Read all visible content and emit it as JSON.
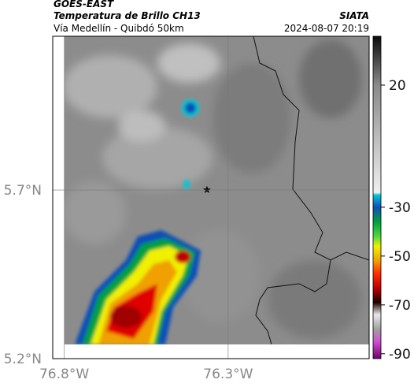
{
  "header": {
    "source": "GOES-EAST",
    "title": "Temperatura de Brillo CH13",
    "agency": "SIATA",
    "route": "Vía Medellín - Quibdó 50km",
    "timestamp": "2024-08-07 20:19"
  },
  "map": {
    "lonlim": [
      -76.835,
      -75.87
    ],
    "latlim": [
      5.2,
      6.156
    ],
    "lonticks": [
      {
        "value": -76.8,
        "label": "76.8°W"
      },
      {
        "value": -76.3,
        "label": "76.3°W"
      }
    ],
    "latticks": [
      {
        "value": 5.2,
        "label": "5.2°N"
      },
      {
        "value": 5.7,
        "label": "5.7°N"
      }
    ]
  },
  "colorbar": {
    "lim": [
      -92,
      40
    ],
    "ticks": [
      20,
      -30,
      -50,
      -70,
      -90
    ],
    "colormap": [
      {
        "value": 40,
        "color": "#0a0a0a"
      },
      {
        "value": 20,
        "color": "#8a8a8a"
      },
      {
        "value": -24,
        "color": "#f0f0f0"
      },
      {
        "value": -25,
        "color": "#00c8d8"
      },
      {
        "value": -30,
        "color": "#1050b8"
      },
      {
        "value": -36,
        "color": "#00a040"
      },
      {
        "value": -42,
        "color": "#50d840"
      },
      {
        "value": -46,
        "color": "#f0f000"
      },
      {
        "value": -52,
        "color": "#f0a000"
      },
      {
        "value": -57,
        "color": "#ff3000"
      },
      {
        "value": -63,
        "color": "#c00000"
      },
      {
        "value": -69,
        "color": "#200000"
      },
      {
        "value": -74,
        "color": "#e8e8e8"
      },
      {
        "value": -80,
        "color": "#a0a0a0"
      },
      {
        "value": -85,
        "color": "#d050d0"
      },
      {
        "value": -92,
        "color": "#700070"
      }
    ]
  }
}
